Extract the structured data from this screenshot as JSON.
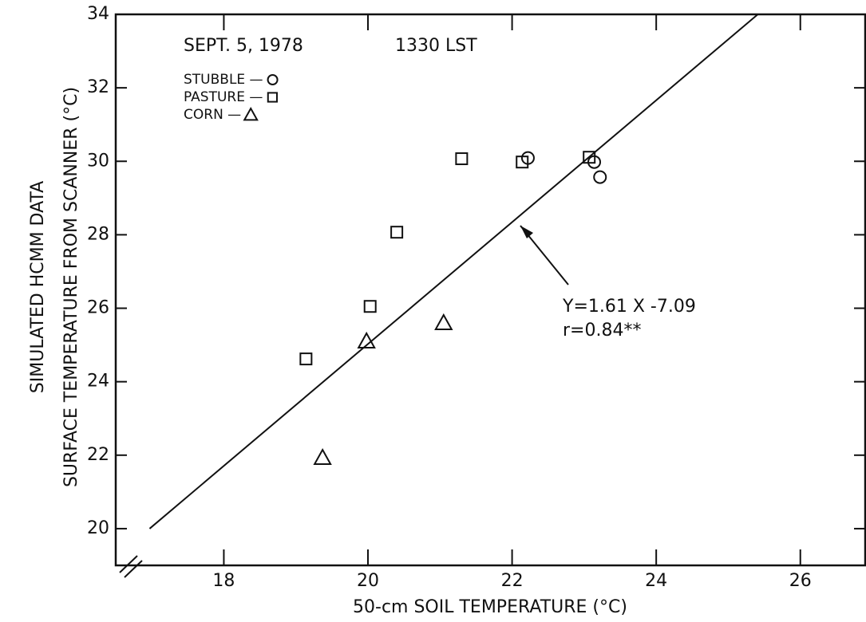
{
  "chart_data": {
    "type": "scatter",
    "title": "SEPT. 5, 1978",
    "subtitle": "1330 LST",
    "xlabel": "50-cm SOIL TEMPERATURE (°C)",
    "ylabel": [
      "SIMULATED HCMM DATA",
      "SURFACE TEMPERATURE FROM SCANNER (°C)"
    ],
    "xlim": [
      16.5,
      26.9
    ],
    "ylim": [
      19,
      34
    ],
    "xticks": [
      18,
      20,
      22,
      24,
      26
    ],
    "yticks": [
      20,
      22,
      24,
      26,
      28,
      30,
      32,
      34
    ],
    "color": "#111111",
    "series": [
      {
        "name": "STUBBLE —",
        "marker": "circle",
        "x": [
          22.22,
          23.14,
          23.22
        ],
        "values": [
          30.09,
          29.98,
          29.57
        ]
      },
      {
        "name": "PASTURE —",
        "marker": "square",
        "x": [
          19.14,
          20.03,
          20.4,
          21.3,
          22.14,
          23.07
        ],
        "values": [
          24.62,
          26.05,
          28.07,
          30.07,
          29.98,
          30.11
        ]
      },
      {
        "name": "CORN —",
        "marker": "triangle",
        "x": [
          19.37,
          19.98,
          21.05
        ],
        "values": [
          21.93,
          25.1,
          25.6
        ]
      }
    ],
    "fit_line": {
      "x": [
        16.97,
        25.41
      ],
      "values": [
        20,
        34
      ]
    },
    "annotations": [
      "Y=1.61 X -7.09",
      "r=0.84**"
    ]
  }
}
